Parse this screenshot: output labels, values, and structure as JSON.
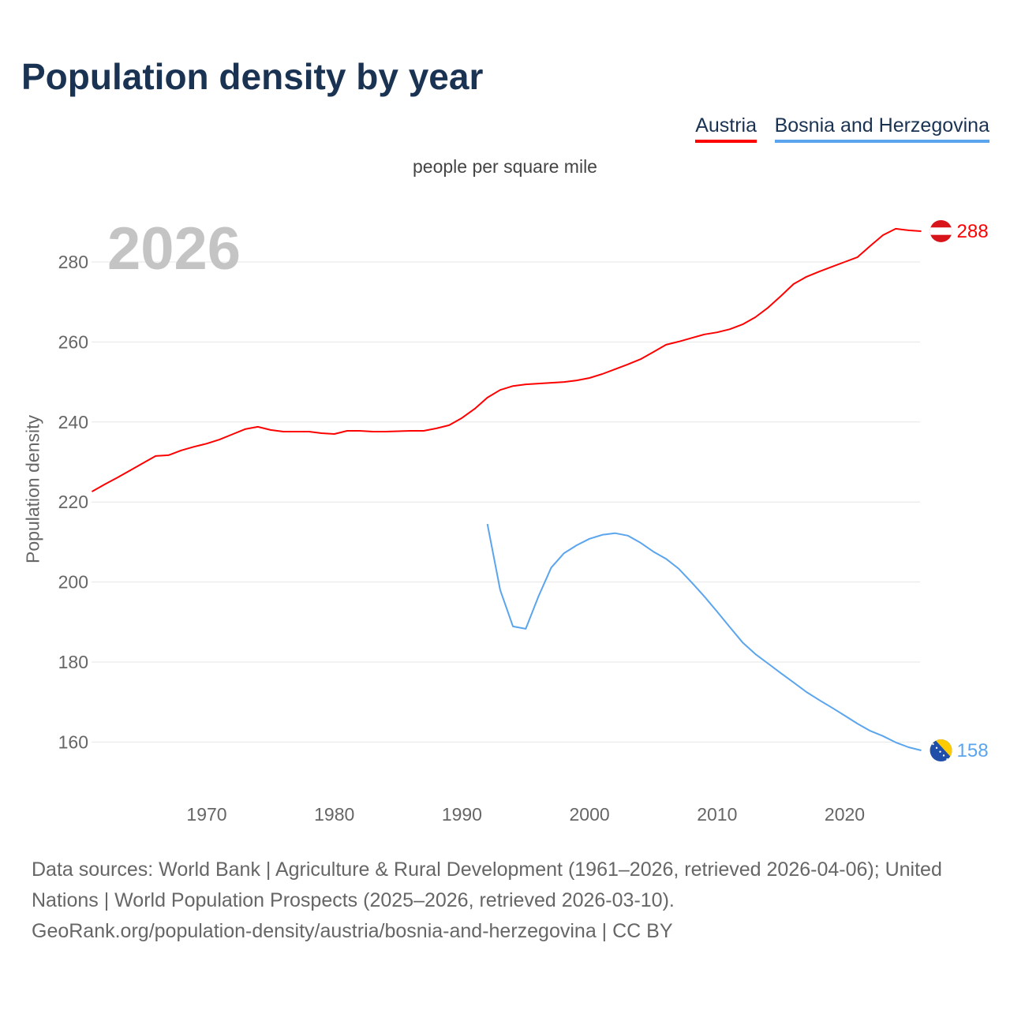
{
  "chart_data": {
    "type": "line",
    "title": "Population density by year",
    "subtitle": "people per square mile",
    "ylabel": "Population density",
    "xlabel": "",
    "year_label": "2026",
    "ylim": [
      148,
      300
    ],
    "xlim": [
      1961,
      2026
    ],
    "yticks": [
      160,
      180,
      200,
      220,
      240,
      260,
      280
    ],
    "xticks": [
      1970,
      1980,
      1990,
      2000,
      2010,
      2020
    ],
    "grid": true,
    "legend_position": "top-right",
    "series": [
      {
        "name": "Austria",
        "color": "#ff0000",
        "end_label": "288",
        "x": [
          1961,
          1962,
          1963,
          1964,
          1965,
          1966,
          1967,
          1968,
          1969,
          1970,
          1971,
          1972,
          1973,
          1974,
          1975,
          1976,
          1977,
          1978,
          1979,
          1980,
          1981,
          1982,
          1983,
          1984,
          1985,
          1986,
          1987,
          1988,
          1989,
          1990,
          1991,
          1992,
          1993,
          1994,
          1995,
          1996,
          1997,
          1998,
          1999,
          2000,
          2001,
          2002,
          2003,
          2004,
          2005,
          2006,
          2007,
          2008,
          2009,
          2010,
          2011,
          2012,
          2013,
          2014,
          2015,
          2016,
          2017,
          2018,
          2019,
          2020,
          2021,
          2022,
          2023,
          2024,
          2025,
          2026
        ],
        "y": [
          222.6,
          224.4,
          226.1,
          227.9,
          229.7,
          231.5,
          231.7,
          232.9,
          233.8,
          234.6,
          235.6,
          236.9,
          238.2,
          238.8,
          238.0,
          237.6,
          237.6,
          237.6,
          237.2,
          237.0,
          237.8,
          237.8,
          237.6,
          237.6,
          237.7,
          237.8,
          237.8,
          238.4,
          239.2,
          241.0,
          243.3,
          246.1,
          248.0,
          249.0,
          249.4,
          249.6,
          249.8,
          250.0,
          250.4,
          251.0,
          252.0,
          253.2,
          254.4,
          255.7,
          257.5,
          259.3,
          260.1,
          261.0,
          261.9,
          262.4,
          263.2,
          264.4,
          266.2,
          268.6,
          271.5,
          274.5,
          276.3,
          277.6,
          278.8,
          280.0,
          281.2,
          284.0,
          286.7,
          288.3,
          287.9,
          287.7
        ]
      },
      {
        "name": "Bosnia and Herzegovina",
        "color": "#5aa5ee",
        "end_label": "158",
        "x": [
          1992,
          1993,
          1994,
          1995,
          1996,
          1997,
          1998,
          1999,
          2000,
          2001,
          2002,
          2003,
          2004,
          2005,
          2006,
          2007,
          2008,
          2009,
          2010,
          2011,
          2012,
          2013,
          2014,
          2015,
          2016,
          2017,
          2018,
          2019,
          2020,
          2021,
          2022,
          2023,
          2024,
          2025,
          2026
        ],
        "y": [
          214.5,
          198.0,
          188.9,
          188.3,
          196.4,
          203.6,
          207.2,
          209.2,
          210.8,
          211.8,
          212.2,
          211.6,
          209.8,
          207.6,
          205.8,
          203.3,
          199.9,
          196.4,
          192.6,
          188.7,
          184.9,
          182.0,
          179.6,
          177.2,
          174.9,
          172.5,
          170.5,
          168.6,
          166.6,
          164.6,
          162.8,
          161.5,
          159.9,
          158.7,
          157.9
        ]
      }
    ]
  },
  "source": {
    "line1": "Data sources: World Bank | Agriculture & Rural Development (1961–2026, retrieved 2026-04-06); United Nations | World Population Prospects (2025–2026, retrieved 2026-03-10).",
    "line2": "GeoRank.org/population-density/austria/bosnia-and-herzegovina | CC BY"
  }
}
